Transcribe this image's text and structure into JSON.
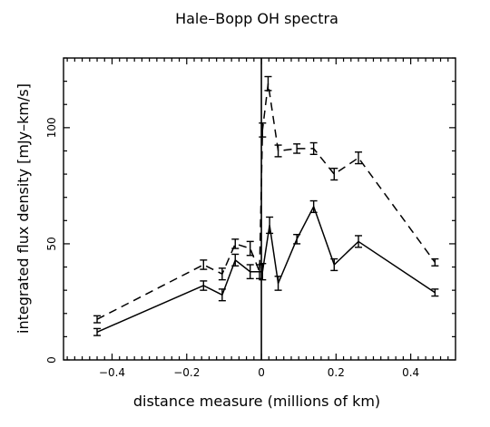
{
  "chart_data": {
    "type": "line",
    "title": "Hale–Bopp OH spectra",
    "xlabel": "distance measure (millions of km)",
    "ylabel": "integrated flux density [mJy–km/s]",
    "xlim": [
      -0.53,
      0.52
    ],
    "ylim": [
      0,
      130
    ],
    "xticks": [
      -0.4,
      -0.2,
      0,
      0.2,
      0.4
    ],
    "xtick_labels": [
      "−0.4",
      "−0.2",
      "0",
      "0.2",
      "0.4"
    ],
    "yticks": [
      0,
      50,
      100
    ],
    "ytick_labels": [
      "0",
      "50",
      "100"
    ],
    "vline_x": 0,
    "grid": false,
    "legend": "none",
    "series": [
      {
        "style": "dashed",
        "points": [
          {
            "x": -0.44,
            "y": 17.5,
            "err": 1.5
          },
          {
            "x": -0.155,
            "y": 41,
            "err": 2
          },
          {
            "x": -0.105,
            "y": 37,
            "err": 2.5
          },
          {
            "x": -0.07,
            "y": 50,
            "err": 2
          },
          {
            "x": -0.03,
            "y": 48,
            "err": 3
          },
          {
            "x": -0.005,
            "y": 38,
            "err": 3
          },
          {
            "x": 0.003,
            "y": 99,
            "err": 3
          },
          {
            "x": 0.018,
            "y": 119,
            "err": 3
          },
          {
            "x": 0.045,
            "y": 90,
            "err": 2.5
          },
          {
            "x": 0.095,
            "y": 91,
            "err": 2
          },
          {
            "x": 0.14,
            "y": 91,
            "err": 2.5
          },
          {
            "x": 0.195,
            "y": 80,
            "err": 2.5
          },
          {
            "x": 0.26,
            "y": 87,
            "err": 2.5
          },
          {
            "x": 0.465,
            "y": 42,
            "err": 1.5
          }
        ]
      },
      {
        "style": "solid",
        "points": [
          {
            "x": -0.44,
            "y": 12,
            "err": 1.5
          },
          {
            "x": -0.155,
            "y": 32,
            "err": 2
          },
          {
            "x": -0.105,
            "y": 28,
            "err": 2.5
          },
          {
            "x": -0.07,
            "y": 43,
            "err": 2.5
          },
          {
            "x": -0.03,
            "y": 38,
            "err": 3
          },
          {
            "x": 0.003,
            "y": 38,
            "err": 3.5
          },
          {
            "x": 0.022,
            "y": 58,
            "err": 3.5
          },
          {
            "x": 0.045,
            "y": 33,
            "err": 3
          },
          {
            "x": 0.095,
            "y": 52,
            "err": 2
          },
          {
            "x": 0.14,
            "y": 66,
            "err": 2.5
          },
          {
            "x": 0.195,
            "y": 41,
            "err": 2.5
          },
          {
            "x": 0.26,
            "y": 51,
            "err": 2.5
          },
          {
            "x": 0.465,
            "y": 29,
            "err": 1.5
          }
        ]
      }
    ]
  }
}
